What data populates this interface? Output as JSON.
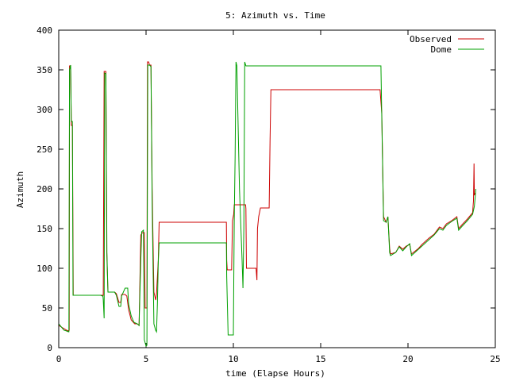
{
  "chart_data": {
    "type": "line",
    "title": "5: Azimuth vs. Time",
    "xlabel": "time (Elapse Hours)",
    "ylabel": "Azimuth",
    "xlim": [
      0,
      25
    ],
    "ylim": [
      0,
      400
    ],
    "xticks": [
      "0",
      "5",
      "10",
      "15",
      "20",
      "25"
    ],
    "yticks": [
      "0",
      "50",
      "100",
      "150",
      "200",
      "250",
      "300",
      "350",
      "400"
    ],
    "grid": false,
    "legend_position": "top-right",
    "series": [
      {
        "name": "Observed",
        "color": "#cc0000",
        "points": [
          [
            0.0,
            28
          ],
          [
            0.3,
            24
          ],
          [
            0.45,
            22
          ],
          [
            0.55,
            21
          ],
          [
            0.6,
            22
          ],
          [
            0.62,
            355
          ],
          [
            0.68,
            355
          ],
          [
            0.72,
            280
          ],
          [
            0.78,
            280
          ],
          [
            0.83,
            66
          ],
          [
            2.4,
            66
          ],
          [
            2.5,
            66
          ],
          [
            2.55,
            66
          ],
          [
            2.6,
            348
          ],
          [
            2.7,
            348
          ],
          [
            2.75,
            120
          ],
          [
            2.82,
            70
          ],
          [
            3.2,
            70
          ],
          [
            3.3,
            68
          ],
          [
            3.45,
            57
          ],
          [
            3.55,
            57
          ],
          [
            3.6,
            67
          ],
          [
            3.8,
            67
          ],
          [
            3.9,
            65
          ],
          [
            4.0,
            48
          ],
          [
            4.15,
            35
          ],
          [
            4.35,
            30
          ],
          [
            4.5,
            30
          ],
          [
            4.6,
            28
          ],
          [
            4.7,
            142
          ],
          [
            4.8,
            145
          ],
          [
            4.9,
            145
          ],
          [
            4.95,
            50
          ],
          [
            5.05,
            50
          ],
          [
            5.08,
            360
          ],
          [
            5.15,
            360
          ],
          [
            5.2,
            356
          ],
          [
            5.28,
            356
          ],
          [
            5.35,
            200
          ],
          [
            5.45,
            70
          ],
          [
            5.55,
            60
          ],
          [
            5.6,
            68
          ],
          [
            5.7,
            110
          ],
          [
            5.75,
            158
          ],
          [
            9.6,
            158
          ],
          [
            9.62,
            110
          ],
          [
            9.65,
            98
          ],
          [
            9.9,
            98
          ],
          [
            9.95,
            160
          ],
          [
            10.02,
            168
          ],
          [
            10.05,
            180
          ],
          [
            10.7,
            180
          ],
          [
            10.72,
            175
          ],
          [
            10.75,
            100
          ],
          [
            11.3,
            100
          ],
          [
            11.35,
            85
          ],
          [
            11.38,
            150
          ],
          [
            11.45,
            165
          ],
          [
            11.55,
            176
          ],
          [
            12.05,
            176
          ],
          [
            12.1,
            260
          ],
          [
            12.15,
            325
          ],
          [
            18.4,
            325
          ],
          [
            18.5,
            295
          ],
          [
            18.6,
            165
          ],
          [
            18.75,
            158
          ],
          [
            18.85,
            165
          ],
          [
            18.95,
            125
          ],
          [
            19.0,
            118
          ],
          [
            19.3,
            120
          ],
          [
            19.5,
            128
          ],
          [
            19.7,
            124
          ],
          [
            19.9,
            128
          ],
          [
            20.1,
            130
          ],
          [
            20.2,
            118
          ],
          [
            20.6,
            125
          ],
          [
            20.8,
            130
          ],
          [
            21.2,
            138
          ],
          [
            21.5,
            143
          ],
          [
            21.8,
            152
          ],
          [
            22.0,
            150
          ],
          [
            22.2,
            156
          ],
          [
            22.5,
            160
          ],
          [
            22.8,
            165
          ],
          [
            22.9,
            150
          ],
          [
            23.1,
            155
          ],
          [
            23.4,
            162
          ],
          [
            23.7,
            170
          ],
          [
            23.75,
            185
          ],
          [
            23.78,
            232
          ],
          [
            23.8,
            192
          ],
          [
            23.85,
            195
          ]
        ]
      },
      {
        "name": "Dome",
        "color": "#00a000",
        "points": [
          [
            0.0,
            30
          ],
          [
            0.3,
            22
          ],
          [
            0.45,
            21
          ],
          [
            0.55,
            20
          ],
          [
            0.58,
            20
          ],
          [
            0.62,
            350
          ],
          [
            0.68,
            356
          ],
          [
            0.72,
            285
          ],
          [
            0.78,
            285
          ],
          [
            0.82,
            66
          ],
          [
            2.4,
            66
          ],
          [
            2.5,
            65
          ],
          [
            2.53,
            65
          ],
          [
            2.55,
            60
          ],
          [
            2.6,
            37
          ],
          [
            2.63,
            346
          ],
          [
            2.7,
            345
          ],
          [
            2.76,
            120
          ],
          [
            2.82,
            70
          ],
          [
            3.2,
            70
          ],
          [
            3.3,
            66
          ],
          [
            3.45,
            52
          ],
          [
            3.55,
            52
          ],
          [
            3.6,
            65
          ],
          [
            3.8,
            75
          ],
          [
            3.95,
            75
          ],
          [
            4.0,
            55
          ],
          [
            4.15,
            40
          ],
          [
            4.3,
            32
          ],
          [
            4.5,
            30
          ],
          [
            4.6,
            28
          ],
          [
            4.7,
            110
          ],
          [
            4.75,
            146
          ],
          [
            4.85,
            148
          ],
          [
            4.9,
            10
          ],
          [
            5.0,
            2
          ],
          [
            5.05,
            3
          ],
          [
            5.1,
            356
          ],
          [
            5.2,
            356
          ],
          [
            5.28,
            354
          ],
          [
            5.35,
            180
          ],
          [
            5.45,
            30
          ],
          [
            5.55,
            22
          ],
          [
            5.6,
            20
          ],
          [
            5.65,
            55
          ],
          [
            5.7,
            108
          ],
          [
            5.75,
            132
          ],
          [
            9.6,
            132
          ],
          [
            9.62,
            90
          ],
          [
            9.7,
            16
          ],
          [
            10.0,
            16
          ],
          [
            10.05,
            160
          ],
          [
            10.1,
            240
          ],
          [
            10.15,
            360
          ],
          [
            10.2,
            355
          ],
          [
            10.35,
            200
          ],
          [
            10.5,
            110
          ],
          [
            10.55,
            75
          ],
          [
            10.6,
            150
          ],
          [
            10.65,
            360
          ],
          [
            10.72,
            355
          ],
          [
            18.45,
            355
          ],
          [
            18.5,
            290
          ],
          [
            18.6,
            160
          ],
          [
            18.75,
            158
          ],
          [
            18.85,
            165
          ],
          [
            18.95,
            120
          ],
          [
            19.0,
            116
          ],
          [
            19.3,
            120
          ],
          [
            19.5,
            127
          ],
          [
            19.7,
            122
          ],
          [
            19.9,
            127
          ],
          [
            20.1,
            131
          ],
          [
            20.2,
            116
          ],
          [
            20.6,
            124
          ],
          [
            20.8,
            128
          ],
          [
            21.2,
            136
          ],
          [
            21.5,
            142
          ],
          [
            21.8,
            150
          ],
          [
            22.0,
            148
          ],
          [
            22.2,
            154
          ],
          [
            22.5,
            159
          ],
          [
            22.8,
            163
          ],
          [
            22.9,
            148
          ],
          [
            23.1,
            153
          ],
          [
            23.4,
            160
          ],
          [
            23.7,
            168
          ],
          [
            23.8,
            178
          ],
          [
            23.85,
            190
          ],
          [
            23.88,
            200
          ]
        ]
      }
    ]
  }
}
